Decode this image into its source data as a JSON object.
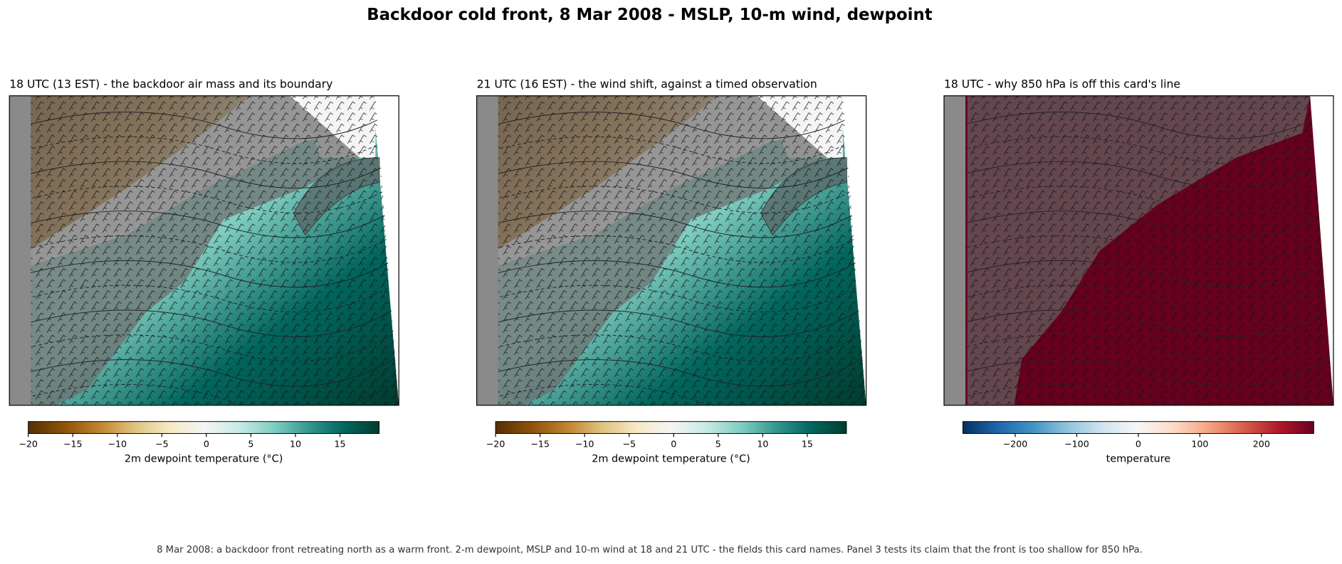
{
  "title": "Backdoor cold front, 8 Mar 2008 - MSLP, 10-m wind, dewpoint",
  "panels": [
    {
      "title": "18 UTC (13 EST) - the backdoor air mass and its boundary",
      "field": "dewpoint",
      "colorbar": {
        "label": "2m dewpoint temperature (°C)",
        "lim": [
          -20,
          19.4
        ],
        "ticks": [
          {
            "value": -20,
            "label": "−20"
          },
          {
            "value": -15,
            "label": "−15"
          },
          {
            "value": -10,
            "label": "−10"
          },
          {
            "value": -5,
            "label": "−5"
          },
          0,
          5,
          10,
          15
        ],
        "colormap": [
          "#543005",
          "#8c510a",
          "#bf812d",
          "#dfc27d",
          "#f6e8c3",
          "#f5f5f5",
          "#c7eae5",
          "#80cdc1",
          "#35978f",
          "#01665e",
          "#003c30"
        ]
      }
    },
    {
      "title": "21 UTC (16 EST) - the wind shift, against a timed observation",
      "field": "dewpoint",
      "colorbar": {
        "label": "2m dewpoint temperature (°C)",
        "lim": [
          -20,
          19.4
        ],
        "ticks": [
          {
            "value": -20,
            "label": "−20"
          },
          {
            "value": -15,
            "label": "−15"
          },
          {
            "value": -10,
            "label": "−10"
          },
          {
            "value": -5,
            "label": "−5"
          },
          0,
          5,
          10,
          15
        ],
        "colormap": [
          "#543005",
          "#8c510a",
          "#bf812d",
          "#dfc27d",
          "#f6e8c3",
          "#f5f5f5",
          "#c7eae5",
          "#80cdc1",
          "#35978f",
          "#01665e",
          "#003c30"
        ]
      }
    },
    {
      "title": "18 UTC - why 850 hPa is off this card's line",
      "field": "temperature",
      "colorbar": {
        "label": "temperature",
        "lim": [
          -285,
          285
        ],
        "ticks": [
          {
            "value": -200,
            "label": "−200"
          },
          {
            "value": -100,
            "label": "−100"
          },
          0,
          100,
          200
        ],
        "colormap": [
          "#053061",
          "#2166ac",
          "#4393c3",
          "#92c5de",
          "#d1e5f0",
          "#f7f7f7",
          "#fddbc7",
          "#f4a582",
          "#d6604d",
          "#b2182b",
          "#67001f"
        ]
      }
    }
  ],
  "caption": "8 Mar 2008: a backdoor front retreating north as a warm front. 2-m dewpoint, MSLP and 10-m wind at 18 and 21 UTC - the fields this card names. Panel 3 tests its claim that the front is too shallow for 850 hPa."
}
